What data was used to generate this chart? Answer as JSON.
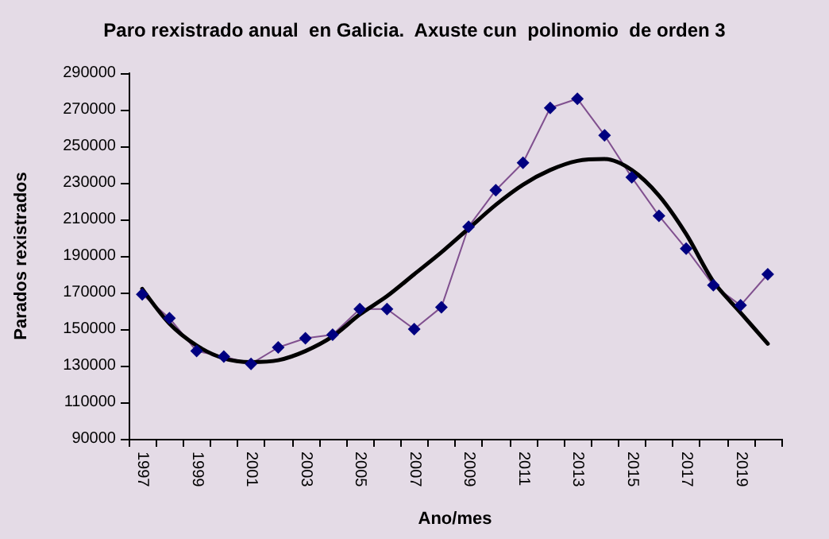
{
  "chart_data": {
    "type": "line",
    "title": "Paro rexistrado anual  en Galicia.  Axuste cun  polinomio  de orden 3",
    "xlabel": "Ano/mes",
    "ylabel": "Parados rexistrados",
    "categories": [
      "1997",
      null,
      "1999",
      null,
      "2001",
      null,
      "2003",
      null,
      "2005",
      null,
      "2007",
      null,
      "2009",
      null,
      "2011",
      null,
      "2013",
      null,
      "2015",
      null,
      "2017",
      null,
      "2019",
      null
    ],
    "series": [
      {
        "color": "#80508f",
        "marker": "diamond",
        "values": [
          169000,
          156000,
          138000,
          135000,
          131000,
          140000,
          145000,
          147000,
          161000,
          161000,
          150000,
          162000,
          206000,
          226000,
          241000,
          271000,
          276000,
          256000,
          233000,
          212000,
          194000,
          174000,
          163000,
          180000
        ]
      },
      {
        "color": "#000000",
        "marker": "none",
        "values": [
          172000,
          153000,
          141000,
          134000,
          132000,
          133000,
          138000,
          146000,
          158000,
          168000,
          180000,
          192000,
          205000,
          218000,
          229000,
          237000,
          242000,
          243000,
          237000,
          223000,
          202000,
          176000,
          159000,
          142000
        ]
      }
    ],
    "ylim": [
      90000,
      290000
    ],
    "yticks": [
      90000,
      110000,
      130000,
      150000,
      170000,
      190000,
      210000,
      230000,
      250000,
      270000,
      290000
    ],
    "grid": false
  }
}
